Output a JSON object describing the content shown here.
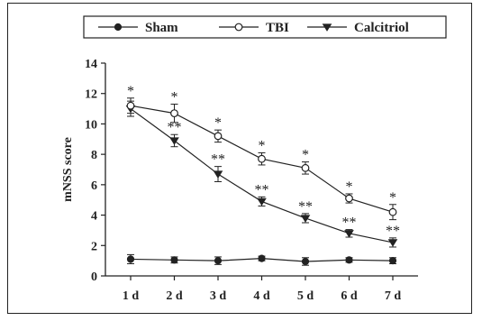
{
  "chart_data": {
    "type": "line",
    "ylabel": "mNSS score",
    "xlabel": "",
    "ylim": [
      0,
      14
    ],
    "yticks": [
      0,
      2,
      4,
      6,
      8,
      10,
      12,
      14
    ],
    "categories": [
      "1 d",
      "2 d",
      "3 d",
      "4 d",
      "5 d",
      "6 d",
      "7 d"
    ],
    "grid": false,
    "legend_position": "top",
    "series": [
      {
        "name": "Sham",
        "marker": "filled-circle",
        "color": "#222222",
        "values": [
          1.1,
          1.05,
          1.0,
          1.15,
          0.95,
          1.05,
          1.0
        ],
        "errors": [
          0.3,
          0.2,
          0.25,
          0.15,
          0.25,
          0.15,
          0.2
        ],
        "significance": [
          "",
          "",
          "",
          "",
          "",
          "",
          ""
        ]
      },
      {
        "name": "TBI",
        "marker": "open-circle",
        "color": "#222222",
        "values": [
          11.2,
          10.7,
          9.2,
          7.7,
          7.1,
          5.1,
          4.2
        ],
        "errors": [
          0.5,
          0.6,
          0.4,
          0.4,
          0.4,
          0.3,
          0.5
        ],
        "significance": [
          "*",
          "*",
          "*",
          "*",
          "*",
          "*",
          "*"
        ]
      },
      {
        "name": "Calcitriol",
        "marker": "filled-triangle-down",
        "color": "#222222",
        "values": [
          11.0,
          8.9,
          6.7,
          4.9,
          3.8,
          2.8,
          2.2
        ],
        "errors": [
          0.5,
          0.4,
          0.5,
          0.3,
          0.3,
          0.25,
          0.3
        ],
        "significance": [
          "",
          "**",
          "**",
          "**",
          "**",
          "**",
          "**"
        ]
      }
    ]
  }
}
